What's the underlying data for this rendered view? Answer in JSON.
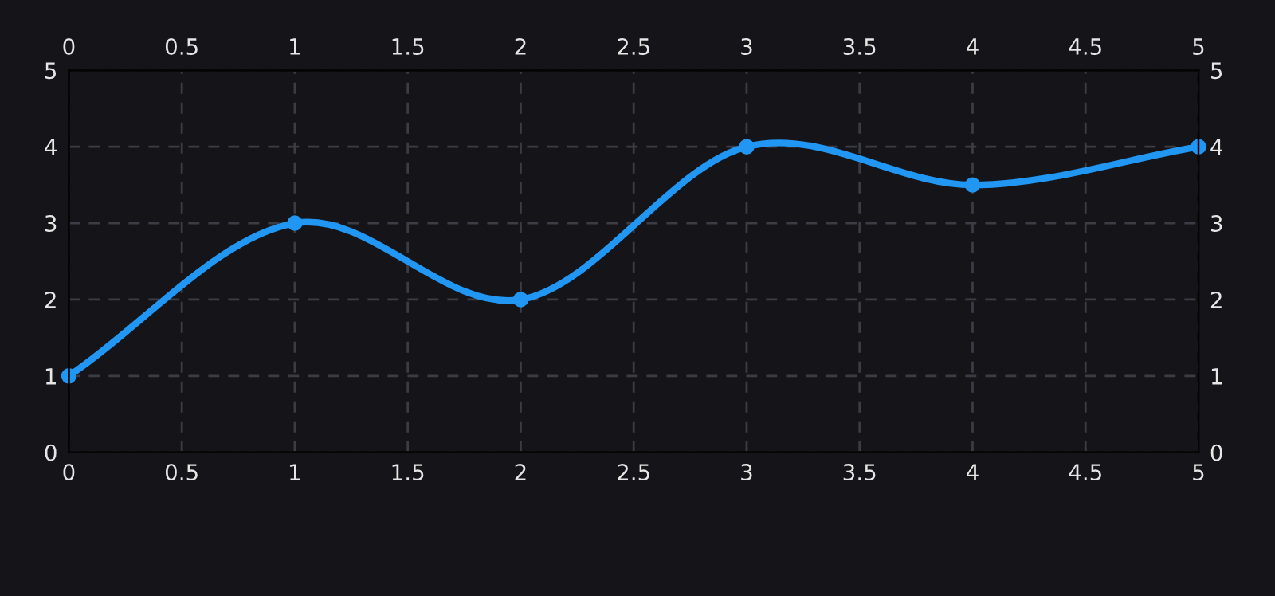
{
  "chart_data": {
    "type": "line",
    "x": [
      0,
      1,
      2,
      3,
      4,
      5
    ],
    "series": [
      {
        "color": "#2196f3",
        "values": [
          1,
          3,
          2,
          4,
          3.5,
          4
        ]
      }
    ],
    "xlim": [
      0,
      5
    ],
    "xticks": [
      0,
      0.5,
      1,
      1.5,
      2,
      2.5,
      3,
      3.5,
      4,
      4.5,
      5
    ],
    "x2lim": [
      0,
      5
    ],
    "x2ticks": [
      0,
      0.5,
      1,
      1.5,
      2,
      2.5,
      3,
      3.5,
      4,
      4.5,
      5
    ],
    "ylim": [
      0,
      5
    ],
    "yticks": [
      0,
      1,
      2,
      3,
      4,
      5
    ],
    "y2lim": [
      0,
      5
    ],
    "y2ticks": [
      0,
      1,
      2,
      3,
      4,
      5
    ],
    "grid": true,
    "marker": "circle",
    "line_style": "solid"
  }
}
